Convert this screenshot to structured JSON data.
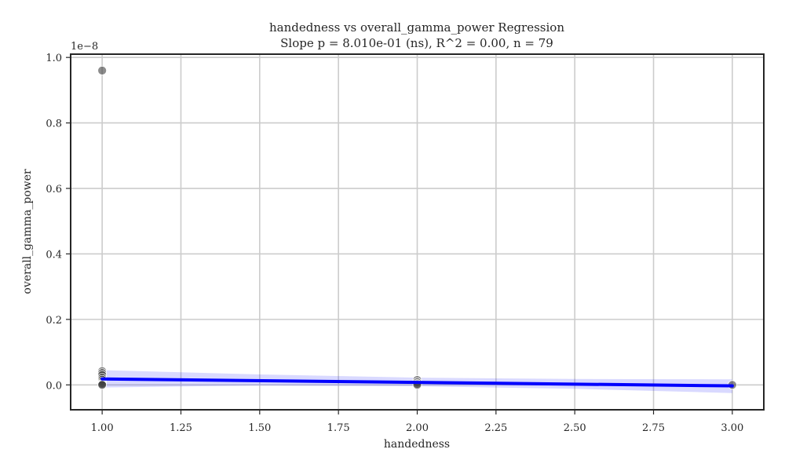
{
  "chart_data": {
    "type": "scatter",
    "title": "handedness vs overall_gamma_power Regression",
    "subtitle": "Slope p = 8.010e-01 (ns), R^2 = 0.00, n = 79",
    "xlabel": "handedness",
    "ylabel": "overall_gamma_power",
    "y_offset_label": "1e−8",
    "xlim": [
      0.9,
      3.1
    ],
    "ylim": [
      -0.076,
      1.01
    ],
    "x_ticks": [
      1.0,
      1.25,
      1.5,
      1.75,
      2.0,
      2.25,
      2.5,
      2.75,
      3.0
    ],
    "x_tick_labels": [
      "1.00",
      "1.25",
      "1.50",
      "1.75",
      "2.00",
      "2.25",
      "2.50",
      "2.75",
      "3.00"
    ],
    "y_ticks": [
      0.0,
      0.2,
      0.4,
      0.6,
      0.8,
      1.0
    ],
    "y_tick_labels": [
      "0.0",
      "0.2",
      "0.4",
      "0.6",
      "0.8",
      "1.0"
    ],
    "grid": true,
    "points": [
      {
        "x": 1.0,
        "y": 0.96
      },
      {
        "x": 1.0,
        "y": 0.042
      },
      {
        "x": 1.0,
        "y": 0.036
      },
      {
        "x": 1.0,
        "y": 0.03
      },
      {
        "x": 1.0,
        "y": 0.022
      },
      {
        "x": 1.0,
        "y": 0.016
      },
      {
        "x": 1.0,
        "y": 0.01
      },
      {
        "x": 1.0,
        "y": 0.005
      },
      {
        "x": 1.0,
        "y": 0.002
      },
      {
        "x": 1.0,
        "y": 0.0
      },
      {
        "x": 2.0,
        "y": 0.015
      },
      {
        "x": 2.0,
        "y": 0.008
      },
      {
        "x": 2.0,
        "y": 0.003
      },
      {
        "x": 2.0,
        "y": 0.0
      },
      {
        "x": 3.0,
        "y": 0.0
      }
    ],
    "regression_line": {
      "x": [
        1.0,
        3.0
      ],
      "y": [
        0.018,
        -0.003
      ]
    },
    "confidence_band": {
      "x": [
        1.0,
        1.5,
        2.0,
        2.5,
        3.0
      ],
      "upper": [
        0.045,
        0.032,
        0.022,
        0.018,
        0.017
      ],
      "lower": [
        -0.008,
        -0.002,
        -0.004,
        -0.012,
        -0.025
      ]
    },
    "colors": {
      "points": "#404040",
      "regression_line": "#0000ff",
      "confidence_band": "#0000ff"
    }
  }
}
